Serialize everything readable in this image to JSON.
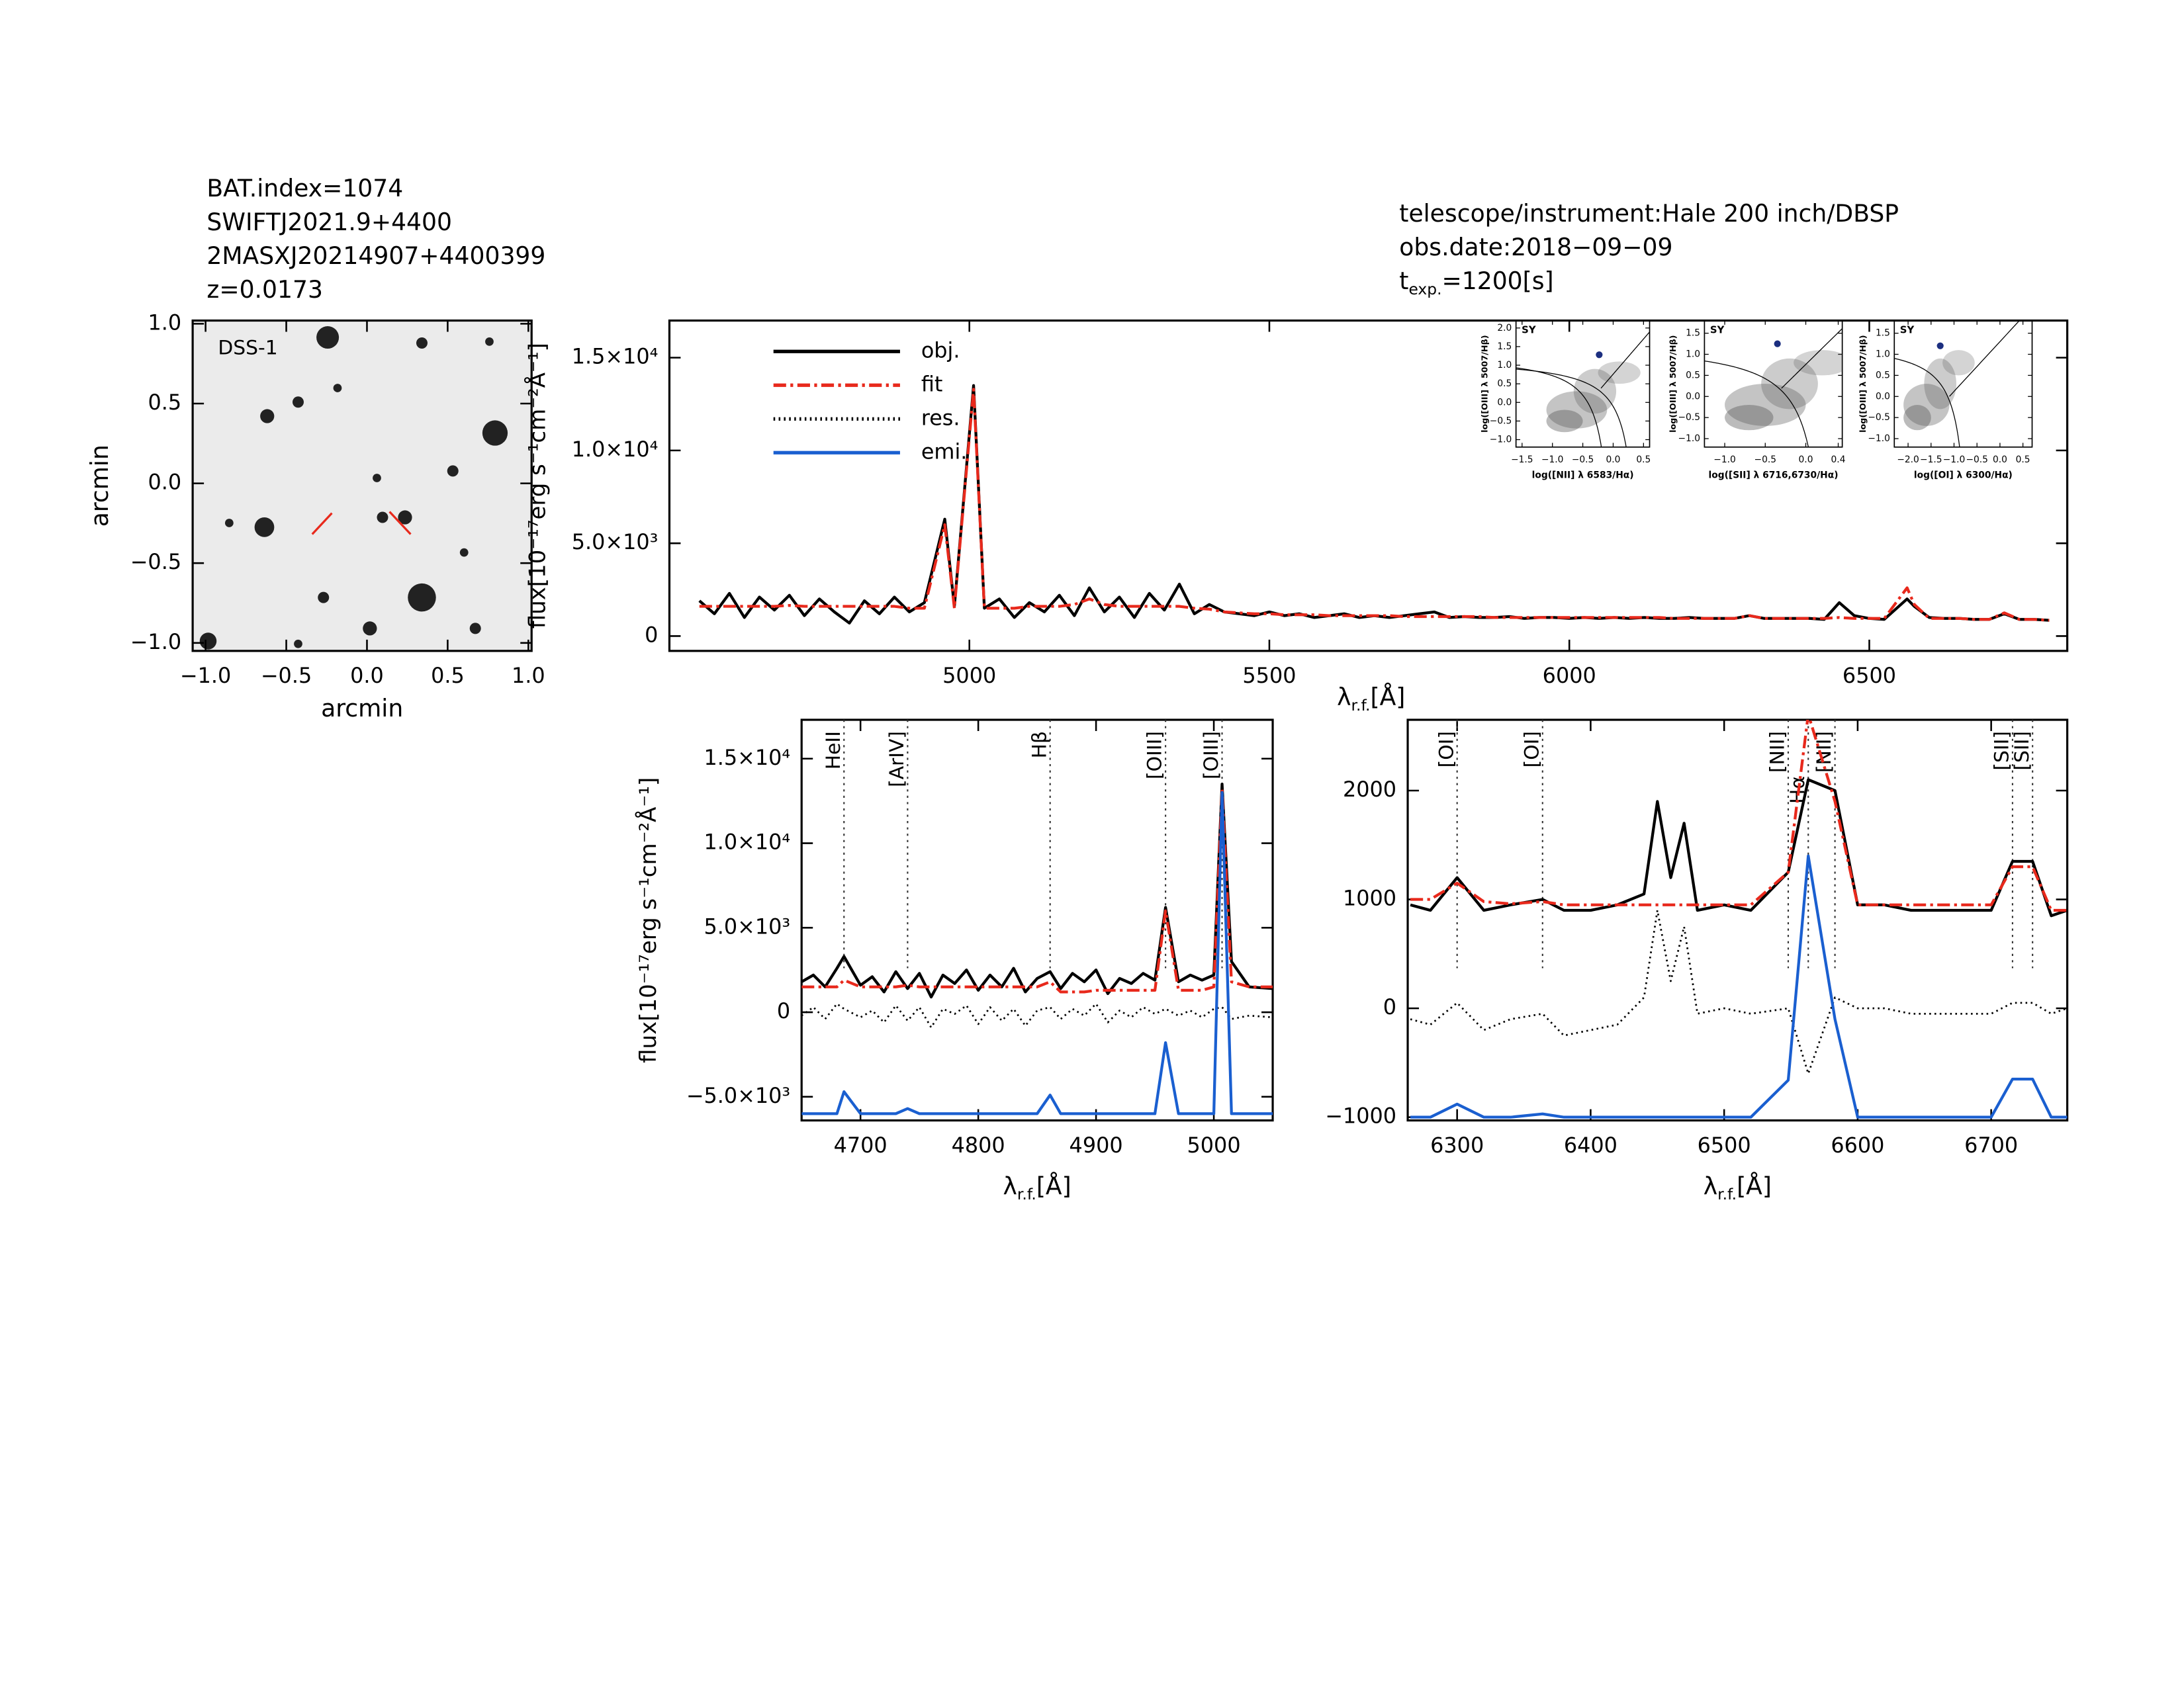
{
  "header": {
    "left": [
      "BAT.index=1074",
      "SWIFTJ2021.9+4400",
      "2MASXJ20214907+4400399",
      "z=0.0173"
    ],
    "right": [
      "telescope/instrument:Hale 200 inch/DBSP",
      "obs.date:2018−09−09"
    ],
    "exposure": {
      "symbol": "t",
      "subscript": "exp.",
      "text": "=1200[s]"
    }
  },
  "chart_data": [
    {
      "type": "image",
      "title": "DSS-1",
      "xlabel": "arcmin",
      "ylabel": "arcmin",
      "xlim": [
        -1.08,
        1.02
      ],
      "ylim": [
        -1.05,
        1.02
      ],
      "xticks": [
        {
          "value": -1.0,
          "label": "−1.0"
        },
        {
          "value": -0.5,
          "label": "−0.5"
        },
        {
          "value": 0.0,
          "label": "0.0"
        },
        0.5,
        {
          "value": 1.0,
          "label": "1.0"
        }
      ],
      "yticks": [
        {
          "value": -1.0,
          "label": "−1.0"
        },
        {
          "value": -0.5,
          "label": "−0.5"
        },
        {
          "value": 0.0,
          "label": "0.0"
        },
        0.5,
        {
          "value": 1.0,
          "label": "1.0"
        }
      ]
    },
    {
      "type": "line",
      "ylabel": "flux[10⁻¹⁷erg s⁻¹cm⁻²Å⁻¹]",
      "xlabel": {
        "symbol": "λ",
        "subscript": "r.f.",
        "unit": "[Å]"
      },
      "xlim": [
        4500,
        6830
      ],
      "ylim": [
        -800,
        17000
      ],
      "xticks": [
        5000,
        5500,
        6000,
        6500
      ],
      "yticks": [
        0,
        {
          "value": 5000,
          "label": "5.0×10³"
        },
        {
          "value": 10000,
          "label": "1.0×10⁴"
        },
        {
          "value": 15000,
          "label": "1.5×10⁴"
        }
      ],
      "legend": [
        {
          "name": "obj.",
          "color": "#000000",
          "linestyle": "solid"
        },
        {
          "name": "fit",
          "color": "#e8291c",
          "linestyle": "dashdot"
        },
        {
          "name": "res.",
          "color": "#000000",
          "linestyle": "dotted"
        },
        {
          "name": "emi.",
          "color": "#1a5fd0",
          "linestyle": "solid"
        }
      ],
      "x": [
        4550,
        4575,
        4600,
        4625,
        4650,
        4675,
        4700,
        4725,
        4750,
        4775,
        4800,
        4825,
        4850,
        4875,
        4900,
        4925,
        4959,
        4975,
        5007,
        5025,
        5050,
        5075,
        5100,
        5125,
        5150,
        5175,
        5200,
        5225,
        5250,
        5275,
        5300,
        5325,
        5350,
        5375,
        5400,
        5425,
        5450,
        5475,
        5500,
        5525,
        5550,
        5575,
        5600,
        5625,
        5650,
        5675,
        5700,
        5725,
        5750,
        5775,
        5800,
        5825,
        5850,
        5875,
        5900,
        5925,
        5950,
        5975,
        6000,
        6025,
        6050,
        6075,
        6100,
        6125,
        6150,
        6175,
        6200,
        6225,
        6250,
        6275,
        6300,
        6325,
        6350,
        6375,
        6400,
        6425,
        6450,
        6475,
        6500,
        6525,
        6563,
        6575,
        6600,
        6625,
        6650,
        6675,
        6700,
        6725,
        6750,
        6775,
        6800
      ],
      "series": [
        {
          "color": "#000000",
          "linestyle": "solid",
          "values": [
            1900,
            1200,
            2300,
            1000,
            2100,
            1400,
            2200,
            1100,
            2000,
            1300,
            700,
            1900,
            1200,
            2100,
            1300,
            1800,
            6300,
            1600,
            13500,
            1500,
            2000,
            1000,
            1800,
            1300,
            2200,
            1100,
            2600,
            1300,
            2100,
            1000,
            2300,
            1400,
            2800,
            1200,
            1700,
            1300,
            1200,
            1100,
            1300,
            1100,
            1200,
            1000,
            1100,
            1200,
            1000,
            1100,
            1000,
            1100,
            1200,
            1300,
            1000,
            1050,
            1000,
            1000,
            1050,
            950,
            1000,
            1000,
            950,
            1000,
            950,
            1000,
            950,
            1000,
            950,
            950,
            1000,
            950,
            950,
            950,
            1100,
            950,
            950,
            950,
            950,
            900,
            1800,
            1100,
            950,
            900,
            2000,
            1600,
            1000,
            950,
            950,
            900,
            900,
            1200,
            900,
            900,
            850
          ]
        },
        {
          "color": "#e8291c",
          "linestyle": "dashdot",
          "values": [
            1600,
            1600,
            1600,
            1600,
            1600,
            1600,
            1650,
            1600,
            1600,
            1600,
            1600,
            1600,
            1600,
            1600,
            1500,
            1500,
            6000,
            1500,
            13300,
            1500,
            1500,
            1500,
            1600,
            1600,
            1600,
            1700,
            2000,
            1700,
            1600,
            1600,
            1600,
            1600,
            1600,
            1500,
            1450,
            1300,
            1250,
            1200,
            1200,
            1150,
            1150,
            1150,
            1100,
            1100,
            1100,
            1100,
            1100,
            1050,
            1050,
            1050,
            1050,
            1050,
            1050,
            1000,
            1000,
            1000,
            1000,
            1000,
            1000,
            1000,
            1000,
            1000,
            1000,
            1000,
            1000,
            950,
            950,
            950,
            950,
            950,
            1100,
            950,
            950,
            950,
            950,
            950,
            1000,
            950,
            950,
            950,
            2600,
            1700,
            950,
            950,
            950,
            900,
            900,
            1250,
            900,
            900,
            850
          ]
        }
      ]
    },
    {
      "type": "scatter",
      "title": "SY",
      "xlabel": "log([NII] λ 6583/Hα)",
      "ylabel": "log([OIII] λ 5007/Hβ)",
      "xlim": [
        -1.6,
        0.6
      ],
      "ylim": [
        -1.2,
        2.2
      ],
      "xticks": [
        {
          "value": -1.5,
          "label": "−1.5"
        },
        {
          "value": -1.0,
          "label": "−1.0"
        },
        {
          "value": -0.5,
          "label": "−0.5"
        },
        {
          "value": 0.0,
          "label": "0.0"
        },
        0.5
      ],
      "yticks": [
        {
          "value": -1.0,
          "label": "−1.0"
        },
        {
          "value": -0.5,
          "label": "−0.5"
        },
        {
          "value": 0.0,
          "label": "0.0"
        },
        0.5,
        {
          "value": 1.0,
          "label": "1.0"
        },
        1.5,
        {
          "value": 2.0,
          "label": "2.0"
        }
      ],
      "point": {
        "x": -0.23,
        "y": 1.28
      },
      "color": "#1c2f80"
    },
    {
      "type": "scatter",
      "title": "SY",
      "xlabel": "log([SII] λ 6716,6730/Hα)",
      "ylabel": "log([OIII] λ 5007/Hβ)",
      "xlim": [
        -1.25,
        0.45
      ],
      "ylim": [
        -1.2,
        1.8
      ],
      "xticks": [
        {
          "value": -1.0,
          "label": "−1.0"
        },
        {
          "value": -0.5,
          "label": "−0.5"
        },
        {
          "value": 0.0,
          "label": "0.0"
        },
        0.4
      ],
      "yticks": [
        {
          "value": -1.0,
          "label": "−1.0"
        },
        {
          "value": -0.5,
          "label": "−0.5"
        },
        {
          "value": 0.0,
          "label": "0.0"
        },
        0.5,
        {
          "value": 1.0,
          "label": "1.0"
        },
        1.5
      ],
      "point": {
        "x": -0.35,
        "y": 1.25
      },
      "color": "#1c2f80"
    },
    {
      "type": "scatter",
      "title": "SY",
      "xlabel": "log([OI] λ 6300/Hα)",
      "ylabel": "log([OIII] λ 5007/Hβ)",
      "xlim": [
        -2.3,
        0.7
      ],
      "ylim": [
        -1.2,
        1.8
      ],
      "xticks": [
        {
          "value": -2.0,
          "label": "−2.0"
        },
        {
          "value": -1.5,
          "label": "−1.5"
        },
        {
          "value": -1.0,
          "label": "−1.0"
        },
        {
          "value": -0.5,
          "label": "−0.5"
        },
        {
          "value": 0.0,
          "label": "0.0"
        },
        0.5
      ],
      "yticks": [
        {
          "value": -1.0,
          "label": "−1.0"
        },
        {
          "value": -0.5,
          "label": "−0.5"
        },
        {
          "value": 0.0,
          "label": "0.0"
        },
        0.5,
        {
          "value": 1.0,
          "label": "1.0"
        },
        1.5
      ],
      "point": {
        "x": -1.3,
        "y": 1.2
      },
      "color": "#1c2f80"
    },
    {
      "type": "line",
      "ylabel": "flux[10⁻¹⁷erg s⁻¹cm⁻²Å⁻¹]",
      "xlabel": {
        "symbol": "λ",
        "subscript": "r.f.",
        "unit": "[Å]"
      },
      "xlim": [
        4650,
        5050
      ],
      "ylim": [
        -6400,
        17300
      ],
      "xticks": [
        4700,
        4800,
        4900,
        5000
      ],
      "yticks": [
        {
          "value": -5000,
          "label": "−5.0×10³"
        },
        0,
        {
          "value": 5000,
          "label": "5.0×10³"
        },
        {
          "value": 10000,
          "label": "1.0×10⁴"
        },
        {
          "value": 15000,
          "label": "1.5×10⁴"
        }
      ],
      "lines": [
        {
          "label": "HeII",
          "x": 4686
        },
        {
          "label": "[ArIV]",
          "x": 4740
        },
        {
          "label": "Hβ",
          "x": 4861
        },
        {
          "label": "[OIII]",
          "x": 4959
        },
        {
          "label": "[OIII]",
          "x": 5007
        }
      ],
      "x": [
        4650,
        4660,
        4670,
        4680,
        4686,
        4700,
        4710,
        4720,
        4730,
        4740,
        4750,
        4760,
        4770,
        4780,
        4790,
        4800,
        4810,
        4820,
        4830,
        4840,
        4850,
        4861,
        4870,
        4880,
        4890,
        4900,
        4910,
        4920,
        4930,
        4940,
        4950,
        4959,
        4970,
        4980,
        4990,
        5000,
        5007,
        5015,
        5030,
        5050
      ],
      "series": [
        {
          "color": "#000000",
          "linestyle": "solid",
          "values": [
            1800,
            2200,
            1500,
            2600,
            3300,
            1600,
            2100,
            1200,
            2400,
            1400,
            2300,
            900,
            2200,
            1700,
            2500,
            1300,
            2200,
            1500,
            2600,
            1200,
            2000,
            2400,
            1400,
            2300,
            1800,
            2500,
            1100,
            2000,
            1700,
            2300,
            1900,
            6200,
            1800,
            2200,
            1900,
            2200,
            13500,
            3000,
            1500,
            1400
          ]
        },
        {
          "color": "#e8291c",
          "linestyle": "dashdot",
          "values": [
            1500,
            1500,
            1500,
            1500,
            1900,
            1500,
            1500,
            1500,
            1500,
            1600,
            1500,
            1500,
            1500,
            1500,
            1500,
            1500,
            1500,
            1500,
            1500,
            1500,
            1500,
            1800,
            1200,
            1200,
            1200,
            1300,
            1300,
            1300,
            1300,
            1300,
            1300,
            6000,
            1300,
            1300,
            1300,
            1500,
            13200,
            1800,
            1500,
            1500
          ]
        },
        {
          "color": "#000000",
          "linestyle": "dotted",
          "values": [
            -200,
            300,
            -400,
            500,
            200,
            -300,
            100,
            -600,
            400,
            -500,
            300,
            -900,
            200,
            -100,
            400,
            -700,
            300,
            -500,
            200,
            -800,
            100,
            300,
            -400,
            200,
            -200,
            500,
            -600,
            100,
            -300,
            300,
            -100,
            200,
            -200,
            100,
            -300,
            200,
            300,
            -400,
            -200,
            -300
          ]
        },
        {
          "color": "#1a5fd0",
          "linestyle": "solid",
          "values": [
            -6000,
            -6000,
            -6000,
            -6000,
            -4700,
            -6000,
            -6000,
            -6000,
            -6000,
            -5700,
            -6000,
            -6000,
            -6000,
            -6000,
            -6000,
            -6000,
            -6000,
            -6000,
            -6000,
            -6000,
            -6000,
            -4900,
            -6000,
            -6000,
            -6000,
            -6000,
            -6000,
            -6000,
            -6000,
            -6000,
            -6000,
            -1800,
            -6000,
            -6000,
            -6000,
            -6000,
            13000,
            -6000,
            -6000,
            -6000
          ]
        }
      ]
    },
    {
      "type": "line",
      "xlabel": {
        "symbol": "λ",
        "subscript": "r.f.",
        "unit": "[Å]"
      },
      "xlim": [
        6263,
        6757
      ],
      "ylim": [
        -1030,
        2650
      ],
      "xticks": [
        6300,
        6400,
        6500,
        6600,
        6700
      ],
      "yticks": [
        {
          "value": -1000,
          "label": "−1000"
        },
        0,
        1000,
        2000
      ],
      "lines": [
        {
          "label": "[OI]",
          "x": 6300
        },
        {
          "label": "[OI]",
          "x": 6364,
          "color": "#e8291c"
        },
        {
          "label": "[NII]",
          "x": 6548
        },
        {
          "label": "Hα",
          "x": 6563
        },
        {
          "label": "[NII]",
          "x": 6583
        },
        {
          "label": "[SII]",
          "x": 6716
        },
        {
          "label": "[SII]",
          "x": 6731
        }
      ],
      "x": [
        6265,
        6280,
        6300,
        6320,
        6340,
        6364,
        6380,
        6400,
        6420,
        6440,
        6450,
        6460,
        6470,
        6480,
        6500,
        6520,
        6548,
        6563,
        6583,
        6600,
        6620,
        6640,
        6660,
        6680,
        6700,
        6716,
        6731,
        6745,
        6757
      ],
      "series": [
        {
          "color": "#000000",
          "linestyle": "solid",
          "values": [
            950,
            900,
            1200,
            900,
            950,
            1000,
            900,
            900,
            950,
            1050,
            1900,
            1200,
            1700,
            900,
            950,
            900,
            1250,
            2100,
            2000,
            950,
            950,
            900,
            900,
            900,
            900,
            1350,
            1350,
            850,
            900
          ]
        },
        {
          "color": "#e8291c",
          "linestyle": "dashdot",
          "values": [
            1000,
            1000,
            1150,
            980,
            960,
            980,
            950,
            950,
            950,
            950,
            950,
            950,
            950,
            950,
            950,
            950,
            1250,
            2700,
            1900,
            950,
            950,
            950,
            950,
            950,
            950,
            1300,
            1300,
            900,
            900
          ]
        },
        {
          "color": "#000000",
          "linestyle": "dotted",
          "values": [
            -100,
            -150,
            50,
            -200,
            -100,
            -50,
            -250,
            -200,
            -150,
            100,
            900,
            250,
            750,
            -50,
            0,
            -50,
            0,
            -600,
            100,
            0,
            0,
            -50,
            -50,
            -50,
            -50,
            50,
            50,
            -50,
            0
          ]
        },
        {
          "color": "#1a5fd0",
          "linestyle": "solid",
          "values": [
            -1000,
            -1000,
            -880,
            -1000,
            -1000,
            -970,
            -1000,
            -1000,
            -1000,
            -1000,
            -1000,
            -1000,
            -1000,
            -1000,
            -1000,
            -1000,
            -660,
            1400,
            -100,
            -1000,
            -1000,
            -1000,
            -1000,
            -1000,
            -1000,
            -650,
            -650,
            -1000,
            -1000
          ]
        }
      ]
    }
  ]
}
